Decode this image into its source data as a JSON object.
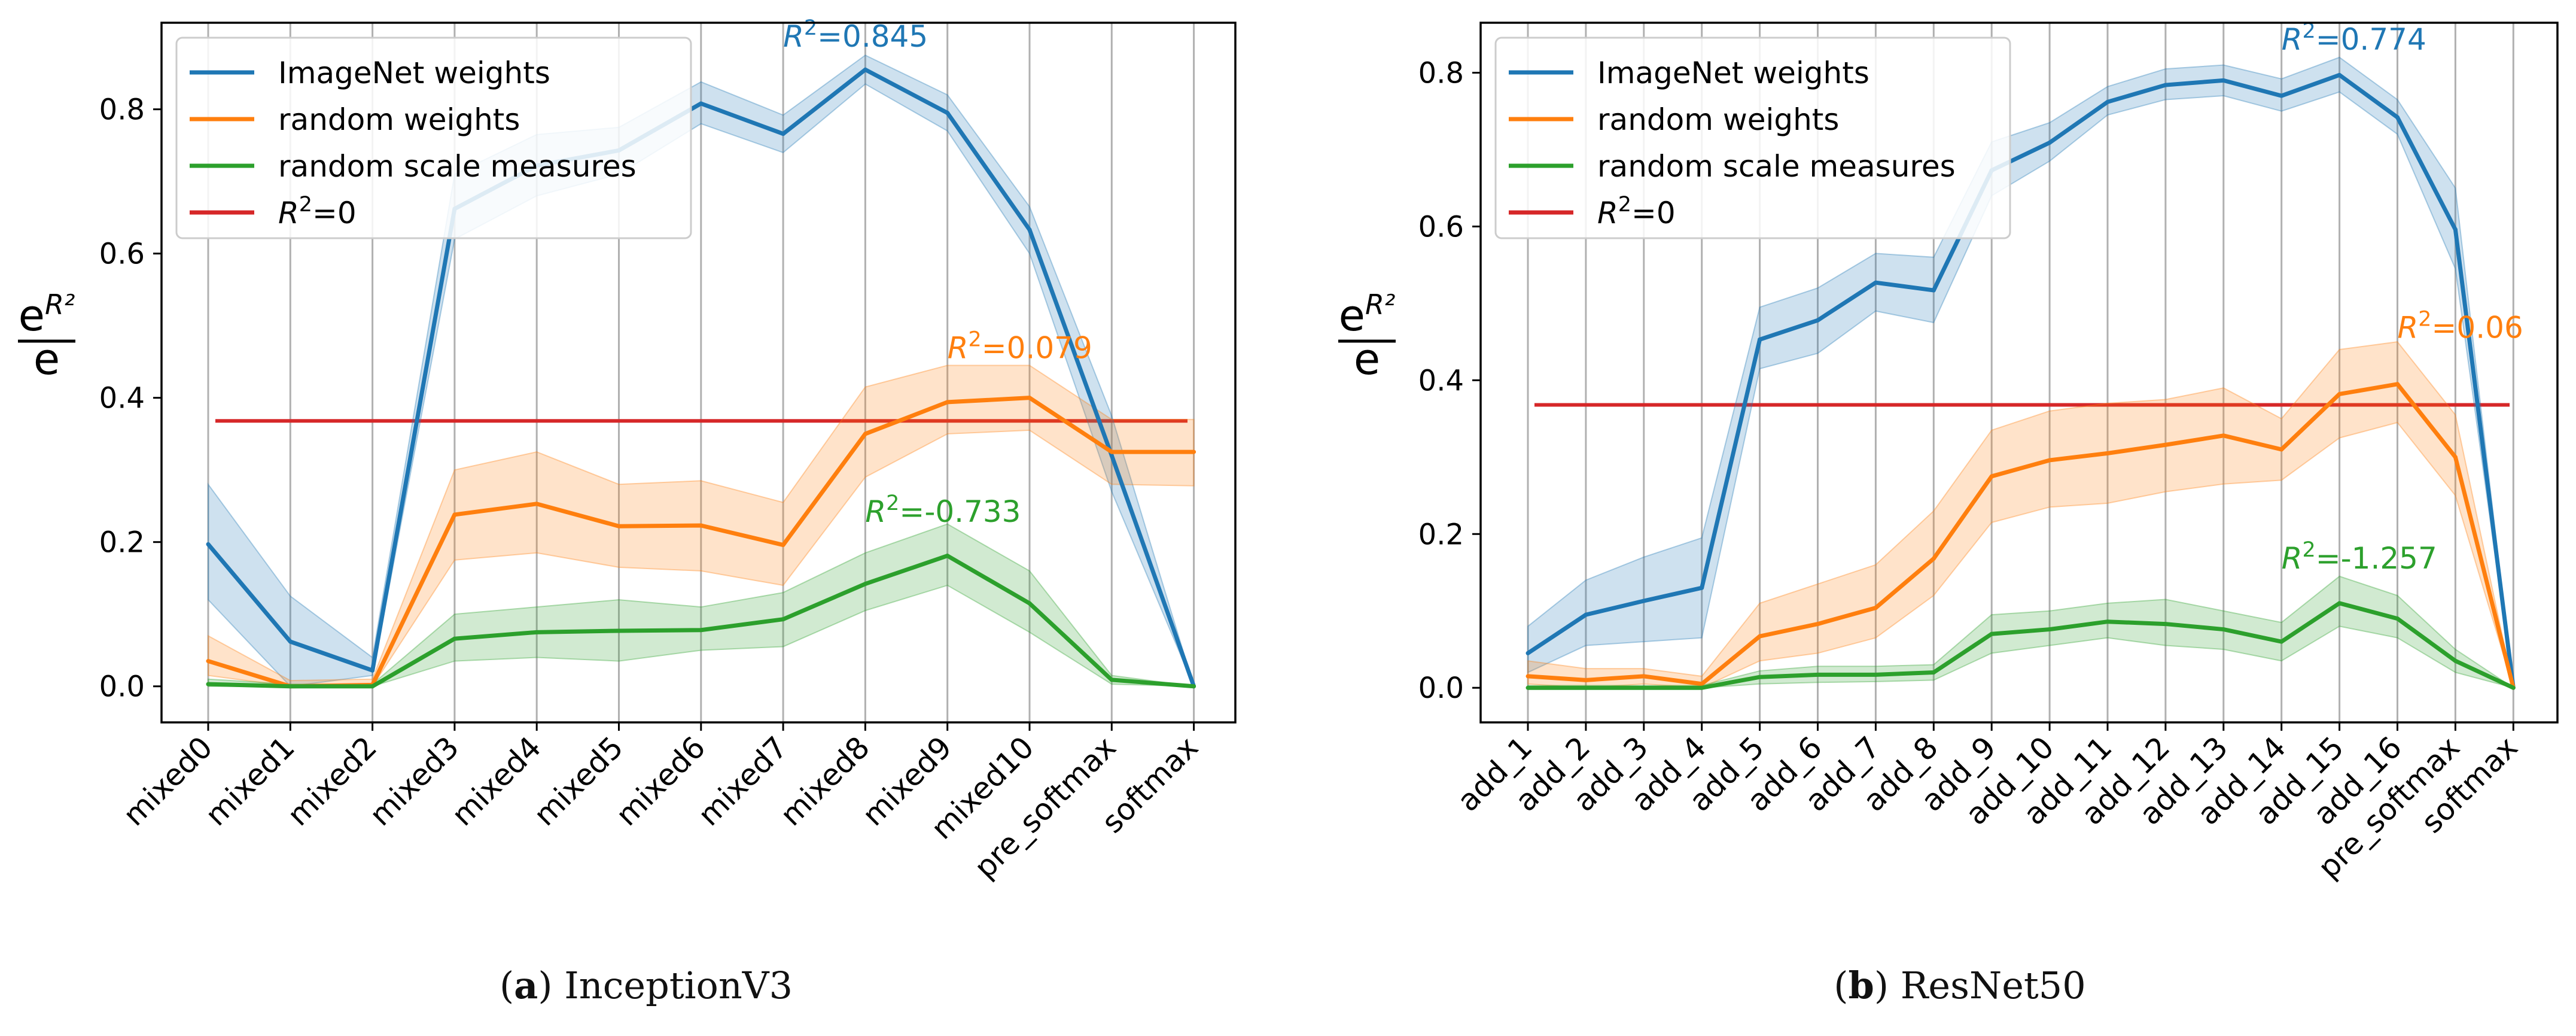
{
  "captions": [
    {
      "letter": "a",
      "text": "InceptionV3"
    },
    {
      "letter": "b",
      "text": "ResNet50"
    }
  ],
  "colors": {
    "imagenet": "#1f77b4",
    "random_weights": "#ff7f0e",
    "random_scale": "#2ca02c",
    "zero_line": "#d62728",
    "grid": "#b0b0b0"
  },
  "chart_data": [
    {
      "type": "line",
      "title": "",
      "xlabel": "",
      "ylabel_base": "e",
      "ylabel_sup": "R²",
      "ylabel_den": "e",
      "ylim": [
        -0.05,
        0.92
      ],
      "yticks": [
        0.0,
        0.2,
        0.4,
        0.6,
        0.8
      ],
      "ytick_labels": [
        "0.0",
        "0.2",
        "0.4",
        "0.6",
        "0.8"
      ],
      "grid": "vertical",
      "legend_position": "top-left",
      "categories": [
        "mixed0",
        "mixed1",
        "mixed2",
        "mixed3",
        "mixed4",
        "mixed5",
        "mixed6",
        "mixed7",
        "mixed8",
        "mixed9",
        "mixed10",
        "pre_softmax",
        "softmax"
      ],
      "reference_line": {
        "name": "R²=0",
        "value": 0.368
      },
      "series": [
        {
          "name": "ImageNet weights",
          "key": "imagenet",
          "values": [
            0.197,
            0.062,
            0.022,
            0.662,
            0.722,
            0.743,
            0.808,
            0.766,
            0.855,
            0.795,
            0.633,
            0.32,
            0.0
          ],
          "lower": [
            0.12,
            0.0,
            0.015,
            0.62,
            0.68,
            0.71,
            0.78,
            0.74,
            0.835,
            0.77,
            0.6,
            0.27,
            0.0
          ],
          "upper": [
            0.28,
            0.125,
            0.04,
            0.71,
            0.765,
            0.775,
            0.838,
            0.792,
            0.875,
            0.82,
            0.665,
            0.375,
            0.0
          ],
          "annotation": "R²=0.845",
          "annotation_index": 7,
          "annotation_y": 0.887
        },
        {
          "name": "random weights",
          "key": "random_weights",
          "values": [
            0.035,
            0.0,
            0.002,
            0.238,
            0.253,
            0.222,
            0.223,
            0.196,
            0.35,
            0.394,
            0.4,
            0.325,
            0.325
          ],
          "lower": [
            0.015,
            0.0,
            0.0,
            0.175,
            0.185,
            0.165,
            0.16,
            0.14,
            0.29,
            0.35,
            0.355,
            0.28,
            0.278
          ],
          "upper": [
            0.07,
            0.008,
            0.01,
            0.3,
            0.325,
            0.28,
            0.285,
            0.255,
            0.415,
            0.445,
            0.445,
            0.37,
            0.37
          ],
          "annotation": "R²=0.079",
          "annotation_index": 9,
          "annotation_y": 0.455
        },
        {
          "name": "random scale measures",
          "key": "random_scale",
          "values": [
            0.003,
            0.0,
            0.0,
            0.066,
            0.075,
            0.077,
            0.078,
            0.093,
            0.142,
            0.181,
            0.115,
            0.009,
            0.0
          ],
          "lower": [
            0.0,
            0.0,
            0.0,
            0.035,
            0.04,
            0.035,
            0.05,
            0.055,
            0.105,
            0.14,
            0.075,
            0.003,
            0.0
          ],
          "upper": [
            0.01,
            0.003,
            0.003,
            0.1,
            0.11,
            0.12,
            0.11,
            0.13,
            0.185,
            0.225,
            0.16,
            0.015,
            0.0
          ],
          "annotation": "R²=-0.733",
          "annotation_index": 8,
          "annotation_y": 0.228
        }
      ]
    },
    {
      "type": "line",
      "title": "",
      "xlabel": "",
      "ylabel_base": "e",
      "ylabel_sup": "R²",
      "ylabel_den": "e",
      "ylim": [
        -0.045,
        0.865
      ],
      "yticks": [
        0.0,
        0.2,
        0.4,
        0.6,
        0.8
      ],
      "ytick_labels": [
        "0.0",
        "0.2",
        "0.4",
        "0.6",
        "0.8"
      ],
      "grid": "vertical",
      "legend_position": "top-left",
      "categories": [
        "add_1",
        "add_2",
        "add_3",
        "add_4",
        "add_5",
        "add_6",
        "add_7",
        "add_8",
        "add_9",
        "add_10",
        "add_11",
        "add_12",
        "add_13",
        "add_14",
        "add_15",
        "add_16",
        "pre_softmax",
        "softmax"
      ],
      "reference_line": {
        "name": "R²=0",
        "value": 0.368
      },
      "series": [
        {
          "name": "ImageNet weights",
          "key": "imagenet",
          "values": [
            0.045,
            0.095,
            0.113,
            0.13,
            0.453,
            0.478,
            0.527,
            0.517,
            0.673,
            0.709,
            0.762,
            0.784,
            0.79,
            0.77,
            0.797,
            0.742,
            0.596,
            0.0
          ],
          "lower": [
            0.02,
            0.055,
            0.06,
            0.065,
            0.415,
            0.435,
            0.49,
            0.475,
            0.64,
            0.685,
            0.745,
            0.765,
            0.77,
            0.75,
            0.775,
            0.72,
            0.545,
            0.0
          ],
          "upper": [
            0.08,
            0.14,
            0.17,
            0.195,
            0.495,
            0.52,
            0.565,
            0.56,
            0.71,
            0.735,
            0.782,
            0.805,
            0.81,
            0.792,
            0.82,
            0.765,
            0.65,
            0.0
          ],
          "annotation": "R²=0.774",
          "annotation_index": 13,
          "annotation_y": 0.83
        },
        {
          "name": "random weights",
          "key": "random_weights",
          "values": [
            0.015,
            0.01,
            0.015,
            0.005,
            0.067,
            0.083,
            0.104,
            0.168,
            0.275,
            0.296,
            0.305,
            0.316,
            0.328,
            0.31,
            0.382,
            0.395,
            0.3,
            0.0
          ],
          "lower": [
            0.005,
            0.0,
            0.005,
            0.0,
            0.035,
            0.045,
            0.065,
            0.12,
            0.215,
            0.235,
            0.24,
            0.255,
            0.265,
            0.27,
            0.325,
            0.345,
            0.25,
            0.0
          ],
          "upper": [
            0.035,
            0.025,
            0.025,
            0.015,
            0.11,
            0.135,
            0.16,
            0.23,
            0.335,
            0.36,
            0.37,
            0.375,
            0.39,
            0.35,
            0.44,
            0.45,
            0.355,
            0.0
          ],
          "annotation": "R²=0.06",
          "annotation_index": 15,
          "annotation_y": 0.455
        },
        {
          "name": "random scale measures",
          "key": "random_scale",
          "values": [
            0.0,
            0.0,
            0.0,
            0.0,
            0.014,
            0.017,
            0.017,
            0.02,
            0.07,
            0.076,
            0.086,
            0.083,
            0.076,
            0.06,
            0.11,
            0.09,
            0.035,
            0.0
          ],
          "lower": [
            0.0,
            0.0,
            0.0,
            0.0,
            0.005,
            0.007,
            0.008,
            0.01,
            0.045,
            0.055,
            0.065,
            0.055,
            0.05,
            0.035,
            0.08,
            0.065,
            0.02,
            0.0
          ],
          "upper": [
            0.003,
            0.003,
            0.003,
            0.003,
            0.022,
            0.028,
            0.028,
            0.03,
            0.095,
            0.1,
            0.11,
            0.115,
            0.1,
            0.085,
            0.145,
            0.12,
            0.05,
            0.0
          ],
          "annotation": "R²=-1.257",
          "annotation_index": 13,
          "annotation_y": 0.155
        }
      ]
    }
  ]
}
